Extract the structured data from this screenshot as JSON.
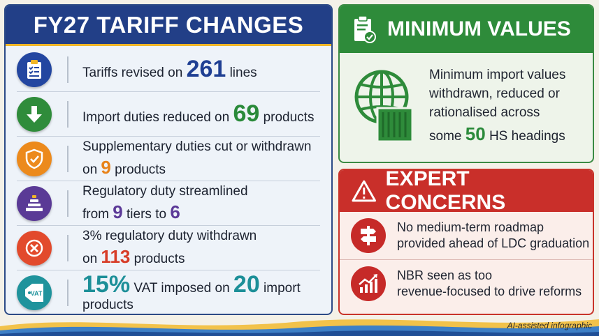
{
  "tariff": {
    "title": "FY27 TARIFF CHANGES",
    "rows": [
      {
        "pre": "Tariffs revised on ",
        "num": "261",
        "post": " lines"
      },
      {
        "pre": "Import duties reduced on ",
        "num": "69",
        "post": " products"
      },
      {
        "line1": "Supplementary duties cut or withdrawn",
        "pre": "on ",
        "num": "9",
        "post": " products"
      },
      {
        "line1": "Regulatory duty streamlined",
        "pre": "from ",
        "num": "9",
        "mid": " tiers to ",
        "num2": "6"
      },
      {
        "line1": "3% regulatory duty withdrawn",
        "pre": "on ",
        "num": "113",
        "post": " products"
      },
      {
        "num": "15%",
        "mid": " VAT imposed on ",
        "num2": "20",
        "post": " import products"
      }
    ],
    "vat_label": "VAT"
  },
  "minimum": {
    "title": "MINIMUM VALUES",
    "line1": "Minimum import values",
    "line2": "withdrawn, reduced or",
    "line3": "rationalised across",
    "pre": "some ",
    "num": "50",
    "post": " HS headings"
  },
  "concerns": {
    "title": "EXPERT CONCERNS",
    "items": [
      {
        "line1": "No medium-term roadmap",
        "line2": "provided ahead of LDC graduation"
      },
      {
        "line1": "NBR seen as too",
        "line2": "revenue-focused to drive reforms"
      }
    ]
  },
  "footer": "AI-assisted infographic",
  "colors": {
    "navy": "#223f87",
    "green": "#2e8b3a",
    "red": "#c92f2a",
    "orange": "#e8831a",
    "purple": "#5c3a98",
    "teal": "#1c8f98",
    "gold": "#f1b628"
  },
  "icons": [
    "clipboard-check-icon",
    "down-arrow-icon",
    "shield-check-icon",
    "tiers-pyramid-icon",
    "cross-circle-icon",
    "vat-tag-icon",
    "globe-container-icon",
    "warning-icon",
    "signpost-icon",
    "rising-chart-icon"
  ]
}
